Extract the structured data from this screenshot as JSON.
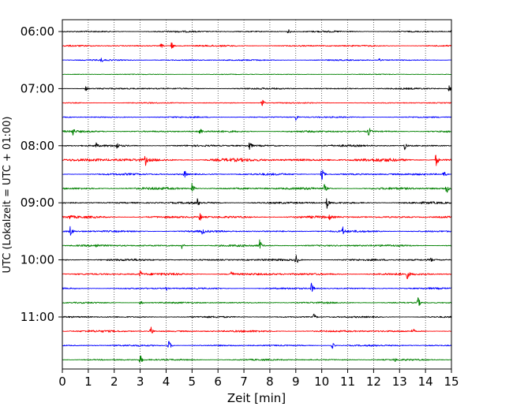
{
  "chart_data": {
    "type": "line",
    "xlabel": "Zeit  [min]",
    "ylabel": "UTC (Lokalzeit = UTC + 01:00)",
    "xlim": [
      0,
      15
    ],
    "x_ticks": [
      0,
      1,
      2,
      3,
      4,
      5,
      6,
      7,
      8,
      9,
      10,
      11,
      12,
      13,
      14,
      15
    ],
    "y_tick_labels": [
      "06:00",
      "07:00",
      "08:00",
      "09:00",
      "10:00",
      "11:00"
    ],
    "rows_start": "06:00",
    "row_interval_minutes": 15,
    "vertical_grid": "dotted",
    "colors": [
      "#000000",
      "#ff0000",
      "#0000ff",
      "#008000"
    ],
    "rows": [
      {
        "start": "06:00",
        "color": "black",
        "amplitude": 0.12,
        "events": [
          {
            "t": 8.7,
            "a": 0.4
          },
          {
            "t": 15.0,
            "a": 0.4
          }
        ]
      },
      {
        "start": "06:15",
        "color": "red",
        "amplitude": 0.12,
        "events": [
          {
            "t": 3.8,
            "a": 0.4
          },
          {
            "t": 4.2,
            "a": 0.6
          }
        ]
      },
      {
        "start": "06:30",
        "color": "blue",
        "amplitude": 0.1,
        "events": [
          {
            "t": 1.5,
            "a": 0.4
          },
          {
            "t": 12.2,
            "a": 0.4
          }
        ]
      },
      {
        "start": "06:45",
        "color": "green",
        "amplitude": 0.06,
        "events": []
      },
      {
        "start": "07:00",
        "color": "black",
        "amplitude": 0.12,
        "events": [
          {
            "t": 0.9,
            "a": 0.4
          },
          {
            "t": 14.9,
            "a": 0.5
          }
        ]
      },
      {
        "start": "07:15",
        "color": "red",
        "amplitude": 0.08,
        "events": [
          {
            "t": 7.7,
            "a": 0.6
          }
        ]
      },
      {
        "start": "07:30",
        "color": "blue",
        "amplitude": 0.1,
        "events": [
          {
            "t": 9.0,
            "a": 0.5
          }
        ]
      },
      {
        "start": "07:45",
        "color": "green",
        "amplitude": 0.15,
        "events": [
          {
            "t": 0.4,
            "a": 0.7
          },
          {
            "t": 5.3,
            "a": 0.7
          },
          {
            "t": 11.8,
            "a": 0.8
          }
        ]
      },
      {
        "start": "08:00",
        "color": "black",
        "amplitude": 0.15,
        "events": [
          {
            "t": 1.3,
            "a": 0.5
          },
          {
            "t": 2.1,
            "a": 0.6
          },
          {
            "t": 7.2,
            "a": 0.9
          },
          {
            "t": 13.2,
            "a": 0.6
          }
        ]
      },
      {
        "start": "08:15",
        "color": "red",
        "amplitude": 0.25,
        "events": [
          {
            "t": 3.2,
            "a": 0.9
          },
          {
            "t": 14.4,
            "a": 1.0
          }
        ]
      },
      {
        "start": "08:30",
        "color": "blue",
        "amplitude": 0.15,
        "events": [
          {
            "t": 4.7,
            "a": 0.7
          },
          {
            "t": 10.0,
            "a": 0.9
          },
          {
            "t": 14.7,
            "a": 0.6
          }
        ]
      },
      {
        "start": "08:45",
        "color": "green",
        "amplitude": 0.18,
        "events": [
          {
            "t": 5.0,
            "a": 0.9
          },
          {
            "t": 10.1,
            "a": 0.7
          },
          {
            "t": 14.8,
            "a": 0.9
          }
        ]
      },
      {
        "start": "09:00",
        "color": "black",
        "amplitude": 0.16,
        "events": [
          {
            "t": 5.2,
            "a": 0.7
          },
          {
            "t": 10.2,
            "a": 0.9
          }
        ]
      },
      {
        "start": "09:15",
        "color": "red",
        "amplitude": 0.18,
        "events": [
          {
            "t": 0.3,
            "a": 0.6
          },
          {
            "t": 5.3,
            "a": 0.7
          },
          {
            "t": 10.3,
            "a": 0.5
          }
        ]
      },
      {
        "start": "09:30",
        "color": "blue",
        "amplitude": 0.15,
        "events": [
          {
            "t": 0.3,
            "a": 0.9
          },
          {
            "t": 5.4,
            "a": 0.6
          },
          {
            "t": 10.8,
            "a": 0.8
          }
        ]
      },
      {
        "start": "09:45",
        "color": "green",
        "amplitude": 0.15,
        "events": [
          {
            "t": 1.3,
            "a": 0.5
          },
          {
            "t": 4.6,
            "a": 0.5
          },
          {
            "t": 7.6,
            "a": 0.9
          }
        ]
      },
      {
        "start": "10:00",
        "color": "black",
        "amplitude": 0.15,
        "events": [
          {
            "t": 9.0,
            "a": 0.9
          },
          {
            "t": 14.2,
            "a": 0.4
          }
        ]
      },
      {
        "start": "10:15",
        "color": "red",
        "amplitude": 0.18,
        "events": [
          {
            "t": 3.0,
            "a": 0.6
          },
          {
            "t": 6.5,
            "a": 0.7
          },
          {
            "t": 13.3,
            "a": 0.8
          }
        ]
      },
      {
        "start": "10:30",
        "color": "blue",
        "amplitude": 0.12,
        "events": [
          {
            "t": 4.0,
            "a": 0.4
          },
          {
            "t": 9.6,
            "a": 0.8
          }
        ]
      },
      {
        "start": "10:45",
        "color": "green",
        "amplitude": 0.12,
        "events": [
          {
            "t": 3.0,
            "a": 0.4
          },
          {
            "t": 13.7,
            "a": 0.9
          }
        ]
      },
      {
        "start": "11:00",
        "color": "black",
        "amplitude": 0.12,
        "events": [
          {
            "t": 9.7,
            "a": 0.5
          }
        ]
      },
      {
        "start": "11:15",
        "color": "red",
        "amplitude": 0.15,
        "events": [
          {
            "t": 3.4,
            "a": 0.8
          },
          {
            "t": 13.5,
            "a": 0.5
          }
        ]
      },
      {
        "start": "11:30",
        "color": "blue",
        "amplitude": 0.12,
        "events": [
          {
            "t": 4.1,
            "a": 0.8
          },
          {
            "t": 10.4,
            "a": 0.5
          }
        ]
      },
      {
        "start": "11:45",
        "color": "green",
        "amplitude": 0.12,
        "events": [
          {
            "t": 3.0,
            "a": 0.8
          },
          {
            "t": 12.8,
            "a": 0.4
          }
        ]
      }
    ]
  }
}
